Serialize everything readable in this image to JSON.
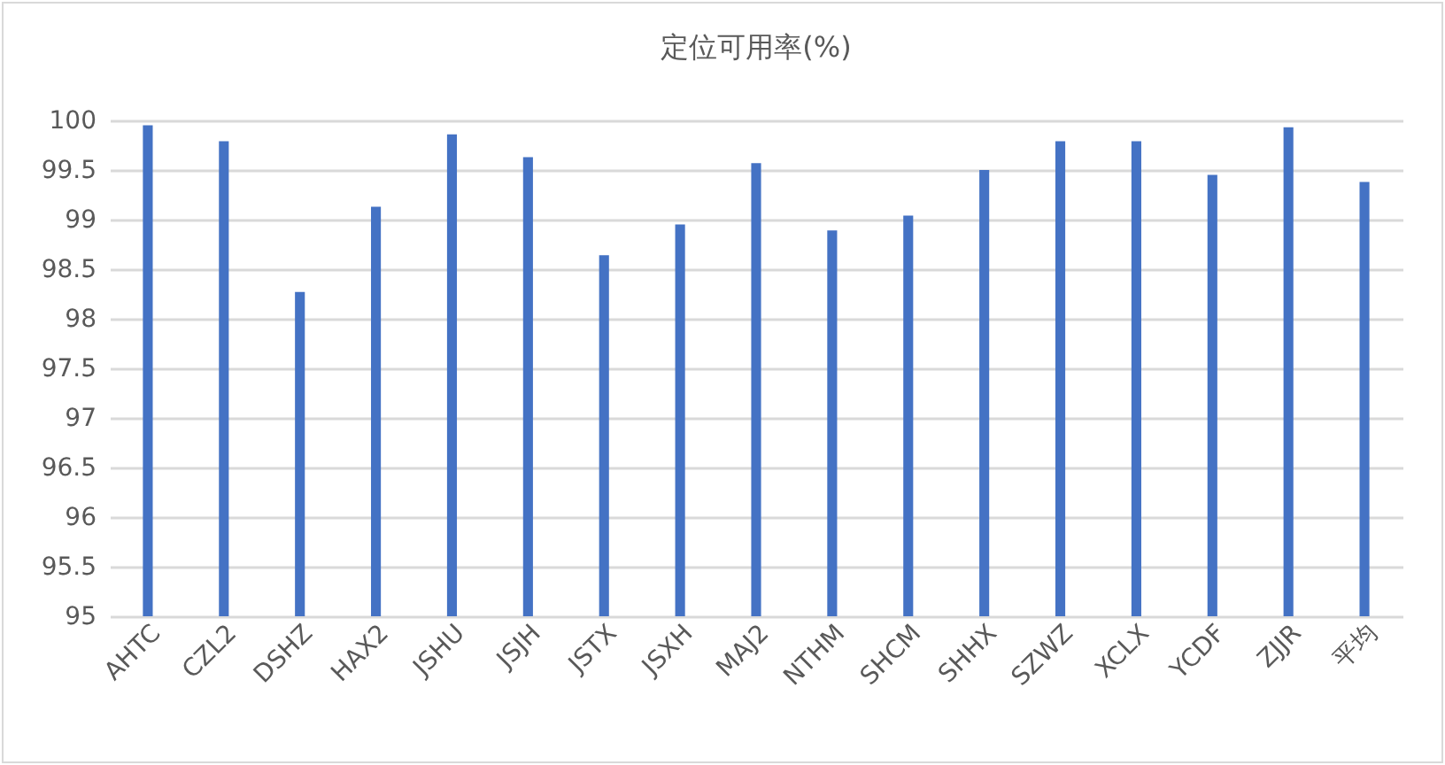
{
  "chart_data": {
    "type": "bar",
    "title": "定位可用率(%)",
    "categories": [
      "AHTC",
      "CZL2",
      "DSHZ",
      "HAX2",
      "JSHU",
      "JSJH",
      "JSTX",
      "JSXH",
      "MAJ2",
      "NTHM",
      "SHCM",
      "SHHX",
      "SZWZ",
      "XCLX",
      "YCDF",
      "ZJJR",
      "平均"
    ],
    "values": [
      99.95,
      99.79,
      98.27,
      99.13,
      99.86,
      99.63,
      98.64,
      98.95,
      99.57,
      98.89,
      99.04,
      99.5,
      99.79,
      99.79,
      99.45,
      99.93,
      99.38
    ],
    "color": "#4472c4",
    "ylim": [
      95,
      100
    ],
    "yticks": [
      95,
      95.5,
      96,
      96.5,
      97,
      97.5,
      98,
      98.5,
      99,
      99.5,
      100
    ],
    "grid": "y"
  }
}
